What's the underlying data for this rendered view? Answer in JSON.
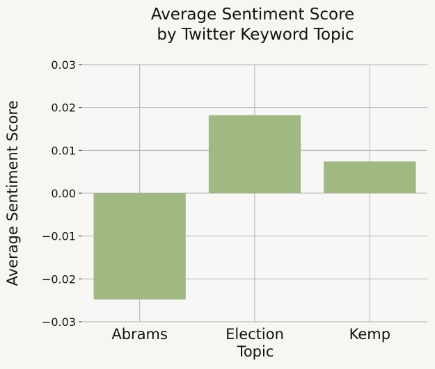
{
  "chart_data": {
    "type": "bar",
    "title_lines": [
      "Average Sentiment Score",
      "by Twitter Keyword Topic"
    ],
    "xlabel": "Topic",
    "ylabel": "Average Sentiment Score",
    "categories": [
      "Abrams",
      "Election",
      "Kemp"
    ],
    "values": [
      -0.0248,
      0.0182,
      0.0074
    ],
    "ylim": [
      -0.03,
      0.03
    ],
    "yticks": [
      0.03,
      0.02,
      0.01,
      0.0,
      -0.01,
      -0.02,
      -0.03
    ],
    "ytick_labels": [
      "0.03",
      "0.02",
      "0.01",
      "0.00",
      "−0.01",
      "−0.02",
      "−0.03"
    ],
    "grid": true,
    "legend": "none"
  },
  "colors": {
    "background": "#f6f6f2",
    "plot_area": "#f7f7f5",
    "bar": "#a0b882",
    "grid": "#b0b0b0",
    "text": "#111111"
  }
}
